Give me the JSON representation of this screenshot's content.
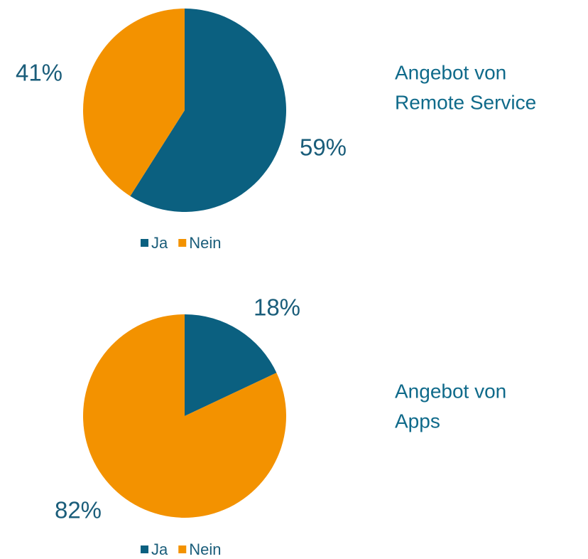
{
  "chart_data": [
    {
      "type": "pie",
      "title": [
        "Angebot von",
        "Remote Service"
      ],
      "categories": [
        "Ja",
        "Nein"
      ],
      "values": [
        59,
        41
      ],
      "value_labels": [
        "59%",
        "41%"
      ],
      "colors": [
        "#0b6080",
        "#f39200"
      ],
      "legend": "bottom"
    },
    {
      "type": "pie",
      "title": [
        "Angebot von",
        "Apps"
      ],
      "categories": [
        "Ja",
        "Nein"
      ],
      "values": [
        18,
        82
      ],
      "value_labels": [
        "18%",
        "82%"
      ],
      "colors": [
        "#0b6080",
        "#f39200"
      ],
      "legend": "bottom"
    }
  ]
}
